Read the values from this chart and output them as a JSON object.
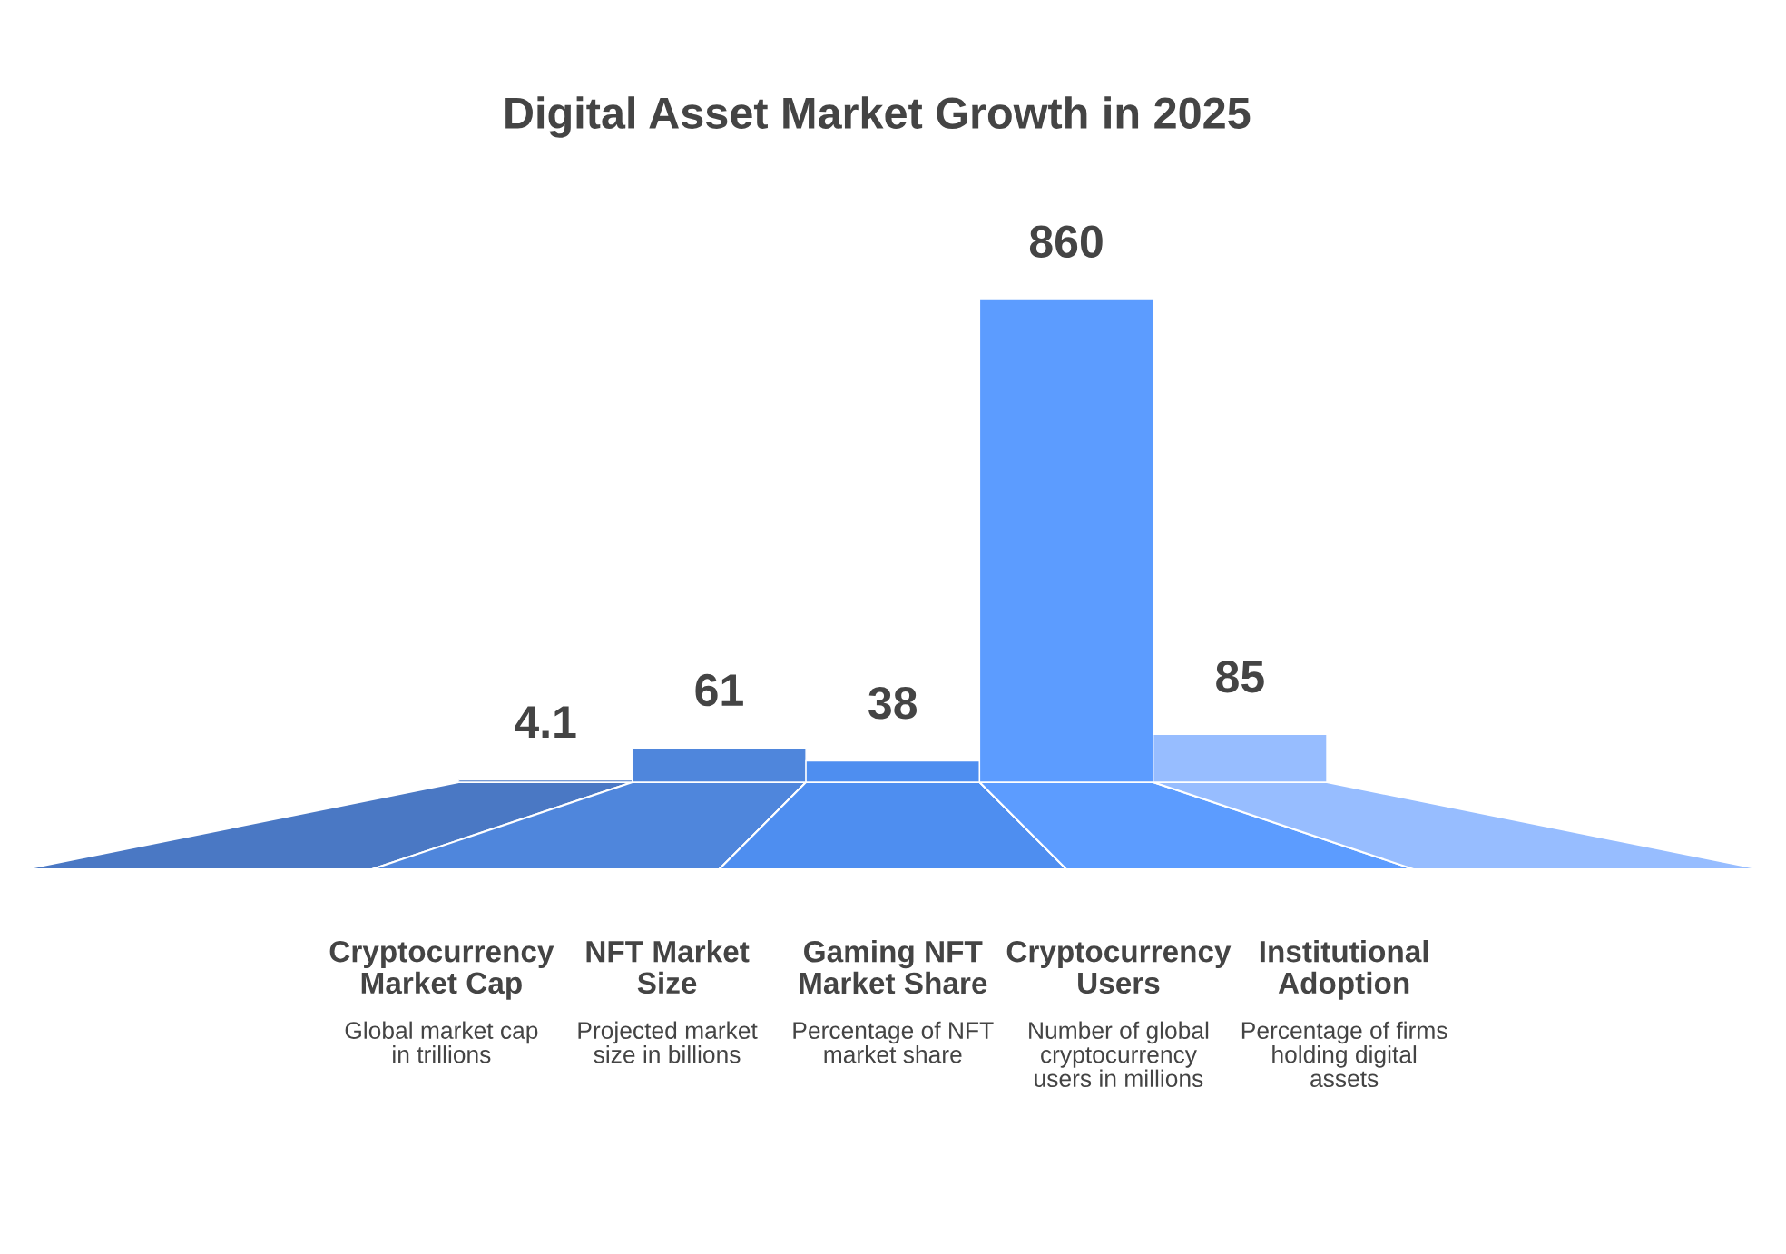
{
  "chart_data": {
    "type": "bar",
    "title": "Digital Asset Market Growth in 2025",
    "categories": [
      "Cryptocurrency Market Cap",
      "NFT Market Size",
      "Gaming NFT Market Share",
      "Cryptocurrency Users",
      "Institutional Adoption"
    ],
    "values": [
      4.1,
      61,
      38,
      860,
      85
    ],
    "colors": [
      "#4a78c4",
      "#4f86dc",
      "#4e8ef0",
      "#5c9cff",
      "#97bdff"
    ],
    "data_labels": true,
    "annotations": [
      "Global market cap in trillions",
      "Projected market size in billions",
      "Percentage of NFT market share",
      "Number of global cryptocurrency users in millions",
      "Percentage of firms holding digital assets"
    ]
  }
}
